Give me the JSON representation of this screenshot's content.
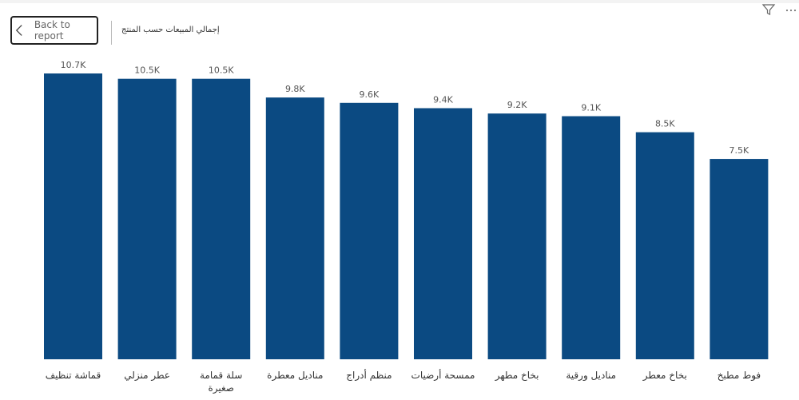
{
  "header": {
    "back_label": "Back to report",
    "title": "إجمالي المبيعات حسب المنتج",
    "icons": [
      "chevron-left-icon",
      "filter-icon",
      "more-options-icon"
    ]
  },
  "chart_data": {
    "type": "bar",
    "title": "إجمالي المبيعات حسب المنتج",
    "categories": [
      [
        "قماشة تنظيف"
      ],
      [
        "عطر منزلي"
      ],
      [
        "سلة قمامة",
        "صغيرة"
      ],
      [
        "مناديل معطرة"
      ],
      [
        "منظم أدراج"
      ],
      [
        "ممسحة أرضيات"
      ],
      [
        "بخاخ مطهر"
      ],
      [
        "مناديل ورقية"
      ],
      [
        "بخاخ معطر"
      ],
      [
        "فوط مطبخ"
      ]
    ],
    "values": [
      10700,
      10500,
      10500,
      9800,
      9600,
      9400,
      9200,
      9100,
      8500,
      7500
    ],
    "data_labels": [
      "10.7K",
      "10.5K",
      "10.5K",
      "9.8K",
      "9.6K",
      "9.4K",
      "9.2K",
      "9.1K",
      "8.5K",
      "7.5K"
    ],
    "ylim": [
      0,
      11500
    ],
    "grid": false,
    "bar_color": "#0b4a82"
  }
}
